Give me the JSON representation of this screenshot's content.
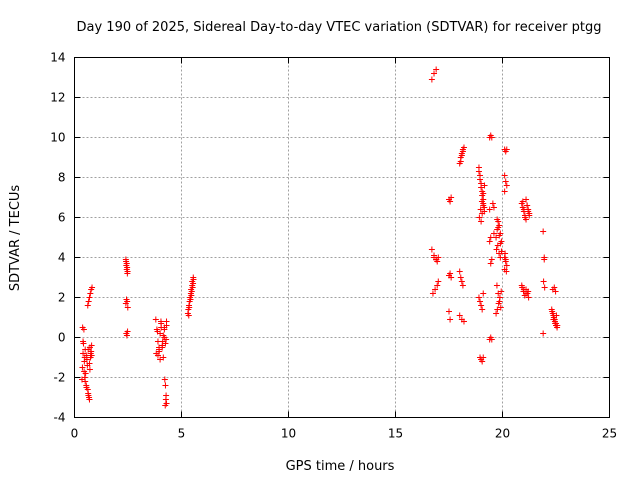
{
  "chart_data": {
    "type": "scatter",
    "title": "Day 190 of 2025, Sidereal Day-to-day VTEC variation (SDTVAR) for receiver ptgg",
    "xlabel": "GPS time / hours",
    "ylabel": "SDTVAR / TECUs",
    "xlim": [
      0,
      25
    ],
    "ylim": [
      -4,
      14
    ],
    "xticks": [
      0,
      5,
      10,
      15,
      20,
      25
    ],
    "yticks": [
      -4,
      -2,
      0,
      2,
      4,
      6,
      8,
      10,
      12,
      14
    ],
    "grid": true,
    "marker": "plus",
    "color": "#ff0000",
    "series": [
      {
        "name": "SDTVAR",
        "x": [
          0.35,
          0.37,
          0.4,
          0.42,
          0.44,
          0.46,
          0.48,
          0.5,
          0.52,
          0.55,
          0.57,
          0.6,
          0.62,
          0.65,
          0.68,
          0.7,
          0.72,
          0.75,
          0.78,
          0.8,
          0.38,
          0.45,
          0.5,
          0.58,
          0.64,
          0.7,
          0.76,
          0.62,
          0.66,
          0.7,
          0.74,
          0.78,
          0.82,
          0.4,
          0.48,
          0.56,
          0.64,
          0.72,
          0.8,
          2.4,
          2.42,
          2.44,
          2.46,
          2.48,
          2.4,
          2.43,
          2.46,
          2.49,
          2.42,
          2.45,
          2.48,
          2.41,
          2.44,
          2.47,
          3.8,
          3.85,
          3.9,
          3.95,
          4.0,
          4.05,
          4.1,
          4.15,
          4.2,
          4.25,
          4.3,
          3.82,
          3.9,
          4.0,
          4.1,
          4.2,
          4.3,
          3.88,
          3.96,
          4.04,
          4.12,
          4.2,
          4.28,
          4.22,
          4.25,
          4.28,
          4.3,
          4.24,
          4.27,
          3.95,
          4.05,
          4.15,
          5.3,
          5.35,
          5.4,
          5.45,
          5.5,
          5.55,
          5.32,
          5.38,
          5.44,
          5.5,
          5.56,
          5.34,
          5.42,
          5.48,
          5.54,
          5.36,
          5.46,
          5.52,
          16.7,
          16.8,
          16.9,
          16.75,
          16.85,
          16.95,
          17.0,
          16.8,
          16.9,
          16.95,
          16.7,
          16.8,
          16.9,
          17.0,
          17.5,
          17.55,
          17.6,
          17.5,
          17.55,
          17.6,
          17.5,
          17.55,
          18.0,
          18.05,
          18.1,
          18.15,
          18.2,
          18.05,
          18.1,
          18.15,
          18.0,
          18.05,
          18.1,
          18.15,
          18.0,
          18.1,
          18.2,
          18.9,
          18.95,
          19.0,
          19.05,
          19.1,
          19.15,
          18.92,
          18.98,
          19.04,
          19.1,
          19.16,
          18.9,
          18.95,
          19.0,
          19.05,
          19.1,
          18.95,
          19.0,
          19.05,
          19.1,
          18.9,
          18.95,
          19.0,
          19.05,
          19.1,
          19.15,
          19.0,
          19.05,
          19.1,
          19.4,
          19.45,
          19.5,
          19.55,
          19.6,
          19.4,
          19.45,
          19.5,
          19.4,
          19.45,
          19.5,
          19.4,
          19.45,
          19.6,
          19.7,
          19.75,
          19.8,
          19.85,
          19.9,
          19.95,
          19.72,
          19.78,
          19.84,
          19.9,
          19.96,
          19.7,
          19.76,
          19.82,
          19.88,
          19.94,
          19.74,
          19.8,
          19.86,
          19.92,
          19.75,
          19.8,
          19.85,
          19.9,
          19.95,
          20.1,
          20.15,
          20.2,
          20.1,
          20.15,
          20.2,
          20.1,
          20.15,
          20.2,
          20.1,
          20.15,
          20.1,
          20.12,
          20.18,
          20.9,
          20.95,
          21.0,
          21.05,
          21.1,
          21.15,
          21.2,
          21.25,
          20.92,
          20.98,
          21.04,
          21.1,
          21.16,
          21.22,
          20.95,
          21.0,
          21.05,
          21.1,
          21.15,
          21.2,
          21.25,
          20.9,
          21.0,
          21.1,
          21.2,
          21.9,
          21.95,
          21.92,
          21.97,
          21.9,
          21.95,
          22.3,
          22.35,
          22.4,
          22.45,
          22.5,
          22.55,
          22.32,
          22.38,
          22.44,
          22.5,
          22.56,
          22.35,
          22.42,
          22.48,
          22.38,
          22.46,
          22.52
        ],
        "y": [
          -2.1,
          -1.5,
          -0.8,
          -0.3,
          0.4,
          -1.2,
          -2.0,
          -0.6,
          -1.8,
          -2.4,
          -0.9,
          -1.4,
          -2.6,
          -2.9,
          -3.0,
          -3.1,
          -0.5,
          -1.0,
          -0.7,
          -0.4,
          0.5,
          -1.7,
          -2.2,
          -1.1,
          -0.6,
          -1.3,
          -0.8,
          1.6,
          1.8,
          2.0,
          2.2,
          2.4,
          2.5,
          -0.2,
          -1.0,
          -2.5,
          -2.8,
          -1.6,
          -0.9,
          3.9,
          3.6,
          3.4,
          3.5,
          3.3,
          1.7,
          1.9,
          1.8,
          1.5,
          0.2,
          0.1,
          0.3,
          3.8,
          3.7,
          3.2,
          0.9,
          0.4,
          -0.2,
          -0.6,
          0.2,
          0.7,
          -0.4,
          0.1,
          0.5,
          -0.3,
          0.8,
          -0.8,
          -0.9,
          -1.1,
          -0.5,
          0.0,
          0.6,
          0.3,
          -0.7,
          0.8,
          -0.2,
          0.4,
          -0.1,
          -2.1,
          -2.4,
          -2.9,
          -3.3,
          -3.4,
          -3.1,
          -0.5,
          0.5,
          -1.0,
          1.2,
          1.6,
          2.0,
          2.4,
          2.8,
          3.0,
          1.4,
          1.8,
          2.2,
          2.6,
          2.9,
          1.1,
          1.9,
          2.3,
          2.7,
          1.5,
          2.1,
          2.5,
          12.9,
          13.2,
          13.4,
          2.2,
          2.4,
          2.6,
          2.8,
          4.0,
          3.9,
          3.8,
          4.4,
          4.1,
          3.9,
          4.0,
          6.9,
          6.8,
          7.0,
          3.1,
          3.2,
          3.0,
          1.3,
          0.9,
          8.7,
          9.0,
          9.2,
          9.4,
          9.5,
          8.8,
          9.1,
          9.3,
          3.3,
          3.0,
          2.8,
          2.6,
          1.1,
          0.9,
          0.8,
          8.5,
          8.1,
          7.7,
          7.3,
          6.9,
          6.5,
          6.0,
          6.4,
          6.8,
          7.2,
          7.6,
          2.0,
          1.8,
          1.6,
          1.4,
          2.2,
          -1.0,
          -1.1,
          -1.2,
          -1.0,
          8.3,
          7.9,
          7.5,
          7.1,
          6.7,
          6.3,
          5.8,
          6.2,
          6.6,
          10.0,
          10.1,
          10.0,
          6.7,
          6.5,
          6.4,
          3.7,
          3.9,
          -0.1,
          0.0,
          -0.1,
          4.8,
          5.0,
          5.2,
          5.0,
          5.4,
          5.8,
          5.6,
          5.2,
          4.8,
          4.4,
          4.6,
          4.2,
          4.0,
          4.3,
          1.2,
          1.4,
          1.7,
          2.0,
          2.3,
          2.6,
          2.2,
          1.8,
          1.5,
          5.9,
          5.5,
          5.1,
          4.7,
          4.3,
          9.4,
          9.3,
          9.4,
          8.1,
          7.8,
          7.6,
          7.3,
          3.9,
          3.6,
          3.4,
          3.8,
          4.0,
          4.2,
          3.3,
          6.7,
          6.5,
          6.3,
          6.1,
          6.9,
          6.6,
          6.4,
          6.2,
          2.5,
          2.3,
          2.1,
          2.4,
          2.2,
          2.0,
          6.8,
          6.4,
          6.0,
          5.9,
          6.6,
          6.3,
          6.1,
          2.6,
          2.4,
          2.2,
          2.3,
          5.3,
          3.9,
          2.8,
          2.5,
          0.2,
          4.0,
          1.4,
          1.2,
          1.0,
          0.8,
          0.6,
          0.5,
          1.3,
          1.1,
          0.9,
          0.7,
          0.6,
          2.4,
          2.5,
          2.3,
          0.9,
          0.7,
          1.1
        ]
      }
    ]
  }
}
